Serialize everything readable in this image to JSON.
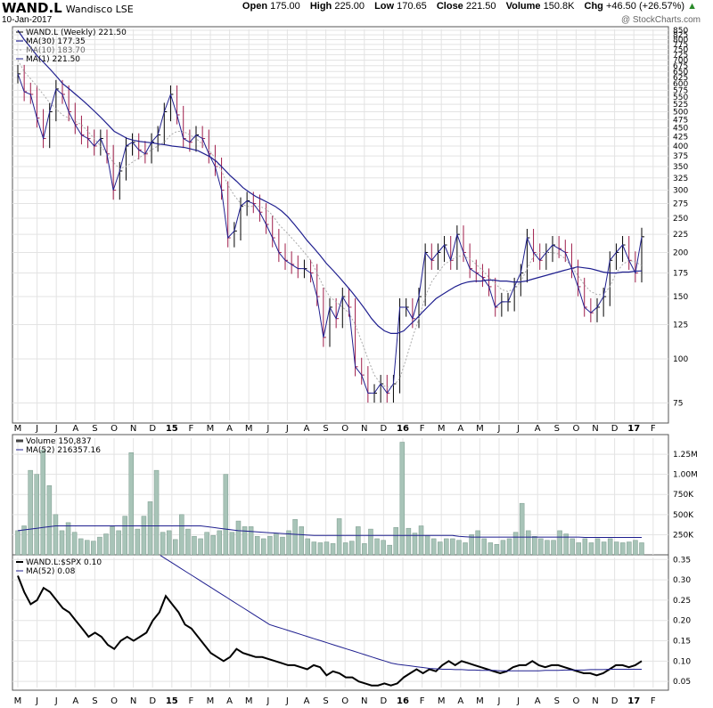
{
  "header": {
    "symbol": "WAND.L",
    "company": "Wandisco LSE",
    "date": "10-Jan-2017",
    "open_label": "Open",
    "open": "175.00",
    "high_label": "High",
    "high": "225.00",
    "low_label": "Low",
    "low": "170.65",
    "close_label": "Close",
    "close": "221.50",
    "volume_label": "Volume",
    "volume": "150.8K",
    "chg_label": "Chg",
    "chg": "+46.50 (+26.57%)",
    "up_arrow": "▲",
    "watermark": "@ StockCharts.com"
  },
  "colors": {
    "up": "#000000",
    "down": "#a01d4a",
    "ma30": "#1f1f8f",
    "ma10": "#aaaaaa",
    "ratio": "#000000",
    "vol": "#a8c4b8",
    "grid": "#e3e3e3"
  },
  "chart_data": [
    {
      "type": "line",
      "title": "",
      "legend": [
        "WAND.L (Weekly) 221.50",
        "MA(30) 177.35",
        "MA(10) 183.70",
        "MA(1) 221.50"
      ],
      "scale": "log",
      "ylim": [
        67,
        855
      ],
      "yticks": [
        75,
        100,
        125,
        150,
        175,
        200,
        225,
        250,
        275,
        300,
        325,
        350,
        375,
        400,
        425,
        450,
        475,
        500,
        525,
        550,
        575,
        600,
        625,
        650,
        675,
        700,
        725,
        750,
        775,
        800,
        825,
        850
      ],
      "x_labels": [
        "M",
        "J",
        "J",
        "A",
        "S",
        "O",
        "N",
        "D",
        "15",
        "F",
        "M",
        "A",
        "M",
        "J",
        "J",
        "A",
        "S",
        "O",
        "N",
        "D",
        "16",
        "F",
        "M",
        "A",
        "M",
        "J",
        "J",
        "A",
        "S",
        "O",
        "N",
        "D",
        "17",
        "F"
      ],
      "series": [
        {
          "name": "WAND.L (Weekly)",
          "values": [
            640,
            570,
            560,
            480,
            420,
            500,
            580,
            560,
            500,
            460,
            430,
            420,
            400,
            420,
            380,
            300,
            340,
            400,
            410,
            390,
            380,
            410,
            430,
            500,
            560,
            490,
            420,
            410,
            430,
            420,
            380,
            350,
            300,
            220,
            230,
            270,
            280,
            275,
            260,
            240,
            220,
            200,
            190,
            185,
            180,
            180,
            175,
            150,
            115,
            140,
            130,
            150,
            140,
            95,
            90,
            80,
            80,
            85,
            80,
            85,
            140,
            140,
            130,
            150,
            200,
            190,
            200,
            210,
            190,
            225,
            200,
            180,
            175,
            170,
            160,
            140,
            145,
            145,
            160,
            175,
            220,
            200,
            190,
            200,
            210,
            205,
            200,
            180,
            160,
            140,
            135,
            140,
            150,
            190,
            200,
            210,
            190,
            175,
            221.5
          ]
        },
        {
          "name": "MA(30)",
          "values": [
            850,
            800,
            760,
            720,
            690,
            660,
            630,
            600,
            580,
            560,
            540,
            520,
            500,
            480,
            460,
            440,
            430,
            420,
            415,
            412,
            410,
            408,
            405,
            403,
            400,
            398,
            396,
            392,
            388,
            380,
            372,
            360,
            345,
            330,
            318,
            305,
            296,
            288,
            282,
            276,
            270,
            262,
            252,
            240,
            228,
            216,
            206,
            196,
            186,
            178,
            170,
            162,
            154,
            146,
            138,
            130,
            124,
            120,
            118,
            118,
            120,
            125,
            130,
            136,
            142,
            148,
            152,
            156,
            160,
            163,
            165,
            166,
            166,
            167,
            167,
            166,
            166,
            165,
            165,
            166,
            168,
            170,
            172,
            174,
            176,
            178,
            180,
            182,
            181,
            180,
            178,
            176,
            175,
            175,
            176,
            176,
            177,
            177.35
          ]
        },
        {
          "name": "MA(10)",
          "values": [
            700,
            650,
            620,
            590,
            560,
            530,
            510,
            490,
            480,
            470,
            460,
            440,
            420,
            400,
            380,
            360,
            345,
            350,
            360,
            370,
            380,
            390,
            400,
            410,
            430,
            440,
            440,
            430,
            420,
            405,
            390,
            370,
            340,
            310,
            290,
            275,
            270,
            270,
            270,
            265,
            255,
            240,
            230,
            220,
            210,
            200,
            190,
            175,
            160,
            150,
            145,
            140,
            135,
            125,
            112,
            100,
            90,
            85,
            83,
            84,
            88,
            100,
            115,
            130,
            150,
            165,
            175,
            185,
            190,
            195,
            195,
            192,
            185,
            178,
            170,
            163,
            157,
            155,
            158,
            165,
            180,
            195,
            200,
            200,
            200,
            198,
            192,
            182,
            172,
            162,
            155,
            152,
            152,
            160,
            175,
            185,
            190,
            188,
            183.7
          ]
        }
      ]
    },
    {
      "type": "bar",
      "title": "",
      "legend": [
        "Volume 150,837",
        "MA(52) 216357.16"
      ],
      "ylim": [
        0,
        1450000
      ],
      "yticks": [
        250000,
        500000,
        750000,
        1000000,
        1250000
      ],
      "ytick_labels": [
        "250K",
        "500K",
        "750K",
        "1.00M",
        "1.25M"
      ],
      "values": [
        300,
        360,
        1050,
        1000,
        1300,
        860,
        500,
        300,
        400,
        280,
        200,
        180,
        170,
        220,
        260,
        350,
        300,
        480,
        1270,
        320,
        480,
        660,
        1050,
        280,
        300,
        190,
        500,
        320,
        230,
        200,
        280,
        240,
        300,
        1000,
        280,
        420,
        350,
        350,
        230,
        200,
        230,
        260,
        220,
        300,
        440,
        350,
        200,
        160,
        150,
        160,
        140,
        450,
        150,
        170,
        350,
        140,
        320,
        200,
        180,
        120,
        340,
        1400,
        330,
        270,
        360,
        240,
        200,
        160,
        200,
        200,
        180,
        150,
        250,
        300,
        200,
        150,
        130,
        180,
        200,
        280,
        640,
        300,
        230,
        200,
        180,
        180,
        300,
        260,
        200,
        150,
        200,
        150,
        200,
        160,
        200,
        160,
        150,
        160,
        180,
        150
      ],
      "series": [
        {
          "name": "MA(52)",
          "values": [
            300,
            310,
            320,
            330,
            340,
            350,
            360,
            360,
            360,
            360,
            360,
            360,
            360,
            360,
            360,
            360,
            360,
            360,
            360,
            360,
            360,
            360,
            360,
            360,
            360,
            360,
            360,
            360,
            360,
            360,
            350,
            340,
            330,
            320,
            310,
            300,
            295,
            290,
            285,
            280,
            275,
            270,
            265,
            260,
            255,
            250,
            245,
            240,
            240,
            240,
            240,
            240,
            240,
            240,
            240,
            240,
            240,
            240,
            240,
            240,
            240,
            240,
            240,
            240,
            240,
            240,
            240,
            240,
            240,
            240,
            230,
            225,
            220,
            220,
            220,
            220,
            220,
            220,
            220,
            220,
            220,
            220,
            220,
            220,
            220,
            220,
            220,
            220,
            220,
            220,
            216,
            216,
            216,
            216,
            216,
            216,
            216,
            216,
            216,
            216
          ]
        }
      ]
    },
    {
      "type": "line",
      "title": "",
      "legend": [
        "WAND.L:$SPX 0.10",
        "MA(52) 0.08"
      ],
      "ylim": [
        0.035,
        0.355
      ],
      "yticks": [
        0.05,
        0.1,
        0.15,
        0.2,
        0.25,
        0.3,
        0.35
      ],
      "ytick_labels": [
        "0.05",
        "0.10",
        "0.15",
        "0.20",
        "0.25",
        "0.30",
        "0.35"
      ],
      "series": [
        {
          "name": "WAND.L:$SPX",
          "values": [
            0.31,
            0.27,
            0.24,
            0.25,
            0.28,
            0.27,
            0.25,
            0.23,
            0.22,
            0.2,
            0.18,
            0.16,
            0.17,
            0.16,
            0.14,
            0.13,
            0.15,
            0.16,
            0.15,
            0.16,
            0.17,
            0.2,
            0.22,
            0.26,
            0.24,
            0.22,
            0.19,
            0.18,
            0.16,
            0.14,
            0.12,
            0.11,
            0.1,
            0.11,
            0.13,
            0.12,
            0.115,
            0.11,
            0.11,
            0.105,
            0.1,
            0.095,
            0.09,
            0.09,
            0.085,
            0.08,
            0.09,
            0.085,
            0.065,
            0.075,
            0.07,
            0.06,
            0.06,
            0.05,
            0.045,
            0.04,
            0.04,
            0.045,
            0.04,
            0.045,
            0.06,
            0.07,
            0.08,
            0.07,
            0.08,
            0.075,
            0.09,
            0.1,
            0.09,
            0.1,
            0.095,
            0.09,
            0.085,
            0.08,
            0.075,
            0.07,
            0.075,
            0.085,
            0.09,
            0.09,
            0.1,
            0.09,
            0.085,
            0.09,
            0.09,
            0.085,
            0.08,
            0.075,
            0.07,
            0.07,
            0.065,
            0.07,
            0.08,
            0.09,
            0.09,
            0.085,
            0.09,
            0.1
          ]
        },
        {
          "name": "MA(52)",
          "values": [
            0.36,
            0.35,
            0.34,
            0.33,
            0.32,
            0.31,
            0.3,
            0.29,
            0.28,
            0.27,
            0.26,
            0.25,
            0.24,
            0.23,
            0.22,
            0.21,
            0.2,
            0.19,
            0.185,
            0.18,
            0.175,
            0.17,
            0.165,
            0.16,
            0.155,
            0.15,
            0.145,
            0.14,
            0.135,
            0.13,
            0.125,
            0.12,
            0.115,
            0.11,
            0.105,
            0.1,
            0.095,
            0.092,
            0.09,
            0.088,
            0.086,
            0.084,
            0.082,
            0.081,
            0.08,
            0.08,
            0.079,
            0.079,
            0.078,
            0.078,
            0.077,
            0.077,
            0.077,
            0.076,
            0.076,
            0.076,
            0.076,
            0.076,
            0.076,
            0.076,
            0.077,
            0.077,
            0.077,
            0.078,
            0.078,
            0.078,
            0.078,
            0.079,
            0.079,
            0.079,
            0.08,
            0.08,
            0.08,
            0.08,
            0.08,
            0.08
          ]
        }
      ]
    }
  ]
}
